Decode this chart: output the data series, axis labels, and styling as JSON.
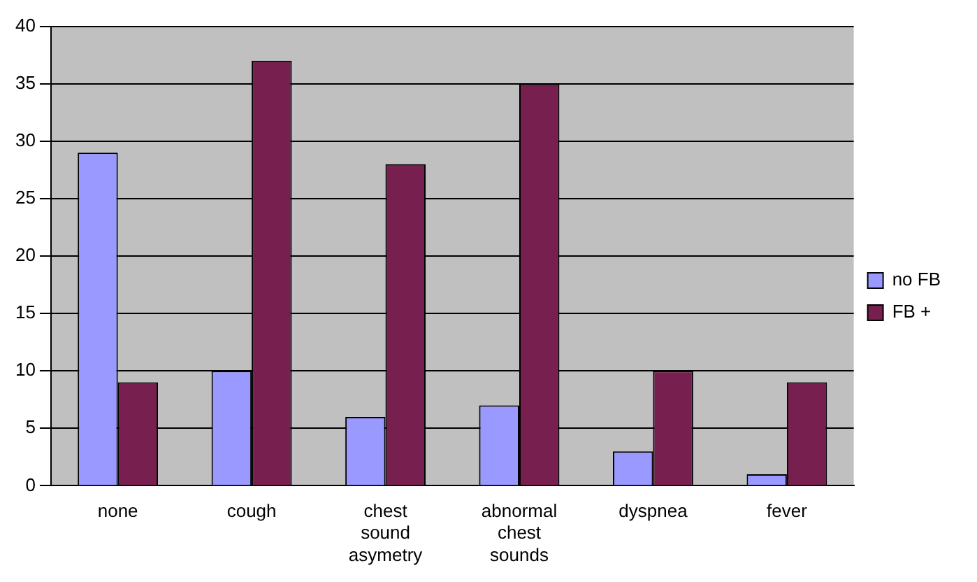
{
  "chart_data": {
    "type": "bar",
    "categories": [
      "none",
      "cough",
      "chest sound asymetry",
      "abnormal chest sounds",
      "dyspnea",
      "fever"
    ],
    "series": [
      {
        "name": "no FB",
        "color": "#9999ff",
        "values": [
          29,
          10,
          6,
          7,
          3,
          1
        ]
      },
      {
        "name": "FB +",
        "color": "#772050",
        "values": [
          9,
          37,
          28,
          35,
          10,
          9
        ]
      }
    ],
    "ylim": [
      0,
      40
    ],
    "yticks": [
      0,
      5,
      10,
      15,
      20,
      25,
      30,
      35,
      40
    ],
    "grid": "y",
    "legend": "right"
  }
}
